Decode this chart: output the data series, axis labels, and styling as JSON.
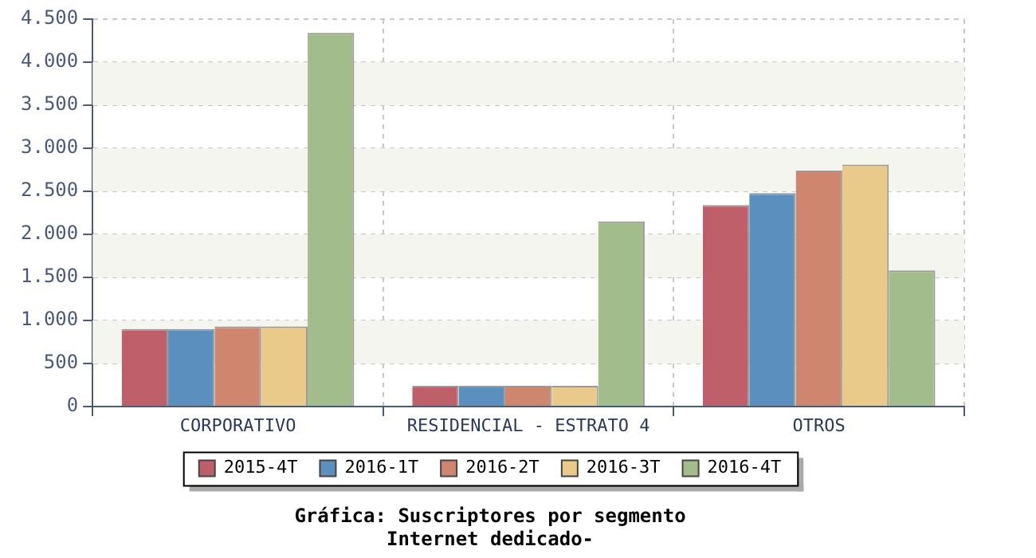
{
  "chart_data": {
    "type": "bar",
    "title": "Gráfica: Suscriptores por segmento",
    "subtitle": "Internet dedicado-",
    "categories": [
      "CORPORATIVO",
      "RESIDENCIAL - ESTRATO 4",
      "OTROS"
    ],
    "series": [
      {
        "name": "2015-4T",
        "color": "#be5f69",
        "values": [
          900,
          240,
          2340
        ]
      },
      {
        "name": "2016-1T",
        "color": "#5b8fbe",
        "values": [
          900,
          240,
          2480
        ]
      },
      {
        "name": "2016-2T",
        "color": "#cf866f",
        "values": [
          930,
          240,
          2740
        ]
      },
      {
        "name": "2016-3T",
        "color": "#e9ca8b",
        "values": [
          930,
          240,
          2810
        ]
      },
      {
        "name": "2016-4T",
        "color": "#a3bc8b",
        "values": [
          4340,
          2150,
          1580
        ]
      }
    ],
    "ylim": [
      0,
      4500
    ],
    "yticks": [
      0,
      500,
      {
        "value": 1000,
        "label": "1.000"
      },
      {
        "value": 1500,
        "label": "1.500"
      },
      {
        "value": 2000,
        "label": "2.000"
      },
      {
        "value": 2500,
        "label": "2.500"
      },
      {
        "value": 3000,
        "label": "3.000"
      },
      {
        "value": 3500,
        "label": "3.500"
      },
      {
        "value": 4000,
        "label": "4.000"
      },
      {
        "value": 4500,
        "label": "4.500"
      }
    ],
    "grid": true,
    "legend": "bottom"
  }
}
